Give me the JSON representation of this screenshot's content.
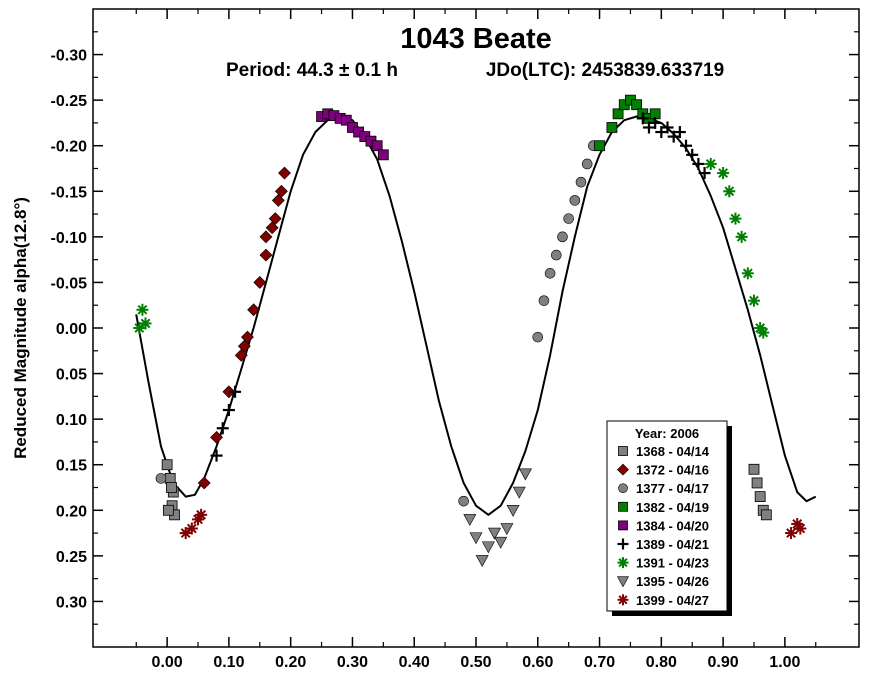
{
  "chart_data": {
    "type": "scatter",
    "title": "1043 Beate",
    "subtitle": {
      "period": "Period: 44.3 ± 0.1 h",
      "epoch": "JDo(LTC): 2453839.633719"
    },
    "xlabel": "",
    "ylabel": "Reduced Magnitude alpha(12.8°)",
    "xlim": [
      -0.12,
      1.12
    ],
    "ylim": [
      0.35,
      -0.35
    ],
    "y_inverted": true,
    "xticks": [
      "0.00",
      "0.10",
      "0.20",
      "0.30",
      "0.40",
      "0.50",
      "0.60",
      "0.70",
      "0.80",
      "0.90",
      "1.00"
    ],
    "xtick_values": [
      0.0,
      0.1,
      0.2,
      0.3,
      0.4,
      0.5,
      0.6,
      0.7,
      0.8,
      0.9,
      1.0
    ],
    "yticks": [
      "-0.30",
      "-0.25",
      "-0.20",
      "-0.15",
      "-0.10",
      "-0.05",
      "0.00",
      "0.05",
      "0.10",
      "0.15",
      "0.20",
      "0.25",
      "0.30"
    ],
    "ytick_values": [
      -0.3,
      -0.25,
      -0.2,
      -0.15,
      -0.1,
      -0.05,
      0.0,
      0.05,
      0.1,
      0.15,
      0.2,
      0.25,
      0.3
    ],
    "grid": false,
    "legend": {
      "title": "Year: 2006",
      "placement": "bottom-right"
    },
    "fit_curve": {
      "x": [
        -0.05,
        -0.03,
        -0.01,
        0.01,
        0.03,
        0.045,
        0.06,
        0.08,
        0.1,
        0.12,
        0.14,
        0.16,
        0.18,
        0.2,
        0.22,
        0.24,
        0.26,
        0.28,
        0.3,
        0.32,
        0.34,
        0.36,
        0.38,
        0.4,
        0.42,
        0.44,
        0.46,
        0.48,
        0.5,
        0.52,
        0.54,
        0.56,
        0.58,
        0.6,
        0.62,
        0.64,
        0.66,
        0.68,
        0.7,
        0.72,
        0.74,
        0.76,
        0.78,
        0.8,
        0.82,
        0.84,
        0.86,
        0.88,
        0.9,
        0.92,
        0.94,
        0.96,
        0.98,
        1.0,
        1.02,
        1.035,
        1.05
      ],
      "y": [
        -0.015,
        0.06,
        0.13,
        0.17,
        0.185,
        0.183,
        0.165,
        0.13,
        0.09,
        0.045,
        0.0,
        -0.05,
        -0.1,
        -0.15,
        -0.19,
        -0.215,
        -0.228,
        -0.232,
        -0.228,
        -0.21,
        -0.185,
        -0.145,
        -0.095,
        -0.04,
        0.02,
        0.08,
        0.13,
        0.17,
        0.195,
        0.205,
        0.195,
        0.17,
        0.135,
        0.09,
        0.03,
        -0.04,
        -0.1,
        -0.155,
        -0.19,
        -0.215,
        -0.228,
        -0.232,
        -0.23,
        -0.225,
        -0.213,
        -0.197,
        -0.175,
        -0.145,
        -0.11,
        -0.065,
        -0.02,
        0.03,
        0.085,
        0.14,
        0.18,
        0.19,
        0.185
      ]
    },
    "series": [
      {
        "name": "1368 - 04/14",
        "marker": "square",
        "color": "#808080",
        "x": [
          0.0,
          0.005,
          0.01,
          0.008,
          0.012,
          0.002,
          0.007,
          0.95,
          0.955,
          0.96,
          0.965,
          0.97
        ],
        "y": [
          0.15,
          0.165,
          0.18,
          0.195,
          0.205,
          0.2,
          0.175,
          0.155,
          0.17,
          0.185,
          0.2,
          0.205
        ]
      },
      {
        "name": "1372 - 04/16",
        "marker": "diamond",
        "color": "#800000",
        "x": [
          0.06,
          0.08,
          0.1,
          0.12,
          0.13,
          0.14,
          0.15,
          0.16,
          0.17,
          0.18,
          0.19,
          0.16,
          0.175,
          0.185,
          0.125
        ],
        "y": [
          0.17,
          0.12,
          0.07,
          0.03,
          0.01,
          -0.02,
          -0.05,
          -0.08,
          -0.11,
          -0.14,
          -0.17,
          -0.1,
          -0.12,
          -0.15,
          0.02
        ]
      },
      {
        "name": "1377 - 04/17",
        "marker": "circle",
        "color": "#808080",
        "x": [
          0.48,
          0.6,
          0.61,
          0.62,
          0.63,
          0.64,
          0.65,
          0.66,
          0.67,
          0.68,
          0.69,
          -0.01
        ],
        "y": [
          0.19,
          0.01,
          -0.03,
          -0.06,
          -0.08,
          -0.1,
          -0.12,
          -0.14,
          -0.16,
          -0.18,
          -0.2,
          0.165
        ]
      },
      {
        "name": "1382 - 04/19",
        "marker": "square",
        "color": "#008000",
        "x": [
          0.7,
          0.72,
          0.73,
          0.74,
          0.75,
          0.76,
          0.77,
          0.78,
          0.79
        ],
        "y": [
          -0.2,
          -0.22,
          -0.235,
          -0.245,
          -0.25,
          -0.245,
          -0.235,
          -0.23,
          -0.235
        ]
      },
      {
        "name": "1384 - 04/20",
        "marker": "square",
        "color": "#800080",
        "x": [
          0.25,
          0.26,
          0.27,
          0.28,
          0.29,
          0.3,
          0.31,
          0.32,
          0.33,
          0.34,
          0.35
        ],
        "y": [
          -0.232,
          -0.235,
          -0.233,
          -0.23,
          -0.228,
          -0.22,
          -0.215,
          -0.21,
          -0.205,
          -0.2,
          -0.19
        ]
      },
      {
        "name": "1389 - 04/21",
        "marker": "plus",
        "color": "#000000",
        "x": [
          0.77,
          0.78,
          0.79,
          0.8,
          0.81,
          0.82,
          0.83,
          0.84,
          0.85,
          0.86,
          0.87,
          0.08,
          0.09,
          0.1,
          0.11
        ],
        "y": [
          -0.23,
          -0.22,
          -0.225,
          -0.215,
          -0.22,
          -0.21,
          -0.215,
          -0.2,
          -0.19,
          -0.18,
          -0.17,
          0.14,
          0.11,
          0.09,
          0.07
        ]
      },
      {
        "name": "1391 - 04/23",
        "marker": "asterisk",
        "color": "#008000",
        "x": [
          -0.045,
          -0.04,
          -0.035,
          0.88,
          0.9,
          0.91,
          0.92,
          0.93,
          0.94,
          0.95,
          0.96,
          0.965
        ],
        "y": [
          0.0,
          -0.02,
          -0.005,
          -0.18,
          -0.17,
          -0.15,
          -0.12,
          -0.1,
          -0.06,
          -0.03,
          0.0,
          0.005
        ]
      },
      {
        "name": "1395 - 04/26",
        "marker": "triangle-down",
        "color": "#808080",
        "x": [
          0.49,
          0.5,
          0.51,
          0.52,
          0.53,
          0.54,
          0.55,
          0.56,
          0.57,
          0.58
        ],
        "y": [
          0.21,
          0.23,
          0.255,
          0.24,
          0.225,
          0.235,
          0.22,
          0.2,
          0.18,
          0.16
        ]
      },
      {
        "name": "1399 - 04/27",
        "marker": "asterisk",
        "color": "#800000",
        "x": [
          0.03,
          0.04,
          0.05,
          0.055,
          1.01,
          1.02,
          1.025
        ],
        "y": [
          0.225,
          0.22,
          0.21,
          0.205,
          0.225,
          0.215,
          0.22
        ]
      }
    ]
  }
}
